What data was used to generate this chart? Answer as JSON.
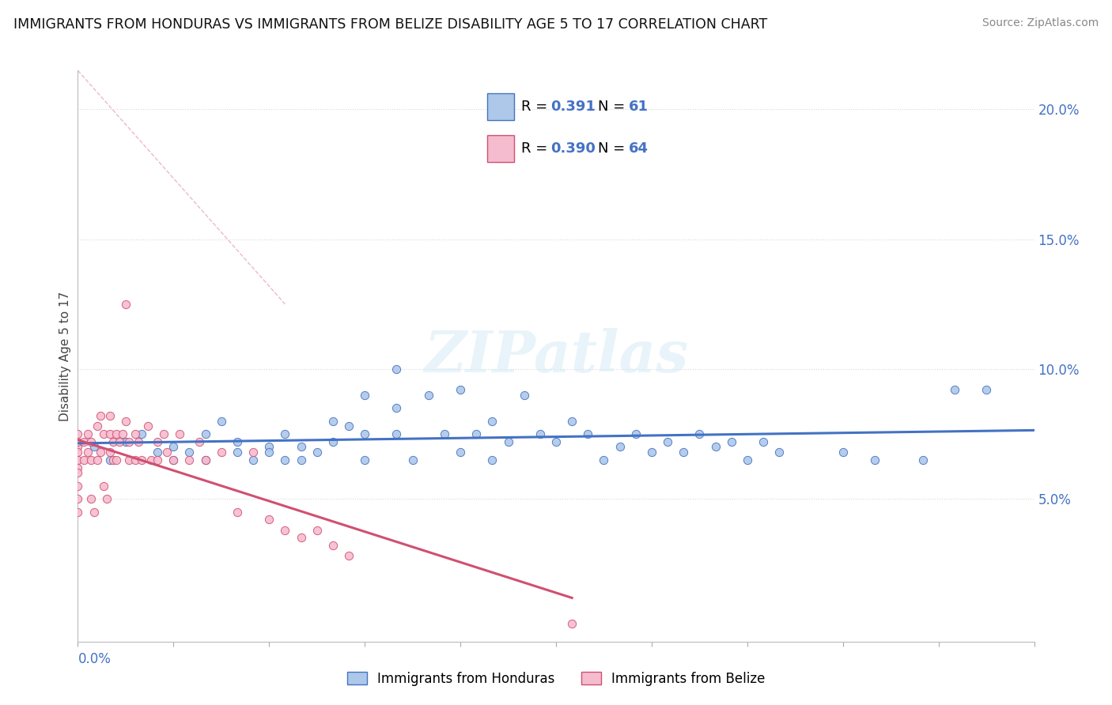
{
  "title": "IMMIGRANTS FROM HONDURAS VS IMMIGRANTS FROM BELIZE DISABILITY AGE 5 TO 17 CORRELATION CHART",
  "source": "Source: ZipAtlas.com",
  "ylabel": "Disability Age 5 to 17",
  "xlim": [
    0.0,
    0.3
  ],
  "ylim": [
    -0.005,
    0.215
  ],
  "color_honduras": "#adc8e8",
  "color_belize": "#f5bcd0",
  "color_trendline_honduras": "#4472c4",
  "color_trendline_belize": "#d05070",
  "color_axis_blue": "#4472c4",
  "color_r_value": "#4472c4",
  "color_n_value": "#4472c4",
  "honduras_x": [
    0.005,
    0.01,
    0.015,
    0.02,
    0.025,
    0.03,
    0.03,
    0.035,
    0.04,
    0.04,
    0.045,
    0.05,
    0.05,
    0.055,
    0.06,
    0.06,
    0.065,
    0.065,
    0.07,
    0.07,
    0.075,
    0.08,
    0.08,
    0.085,
    0.09,
    0.09,
    0.09,
    0.1,
    0.1,
    0.1,
    0.105,
    0.11,
    0.115,
    0.12,
    0.12,
    0.125,
    0.13,
    0.13,
    0.135,
    0.14,
    0.145,
    0.15,
    0.155,
    0.16,
    0.165,
    0.17,
    0.175,
    0.18,
    0.185,
    0.19,
    0.195,
    0.2,
    0.205,
    0.21,
    0.215,
    0.22,
    0.24,
    0.25,
    0.265,
    0.275,
    0.285
  ],
  "honduras_y": [
    0.07,
    0.065,
    0.072,
    0.075,
    0.068,
    0.07,
    0.065,
    0.068,
    0.075,
    0.065,
    0.08,
    0.072,
    0.068,
    0.065,
    0.07,
    0.068,
    0.075,
    0.065,
    0.07,
    0.065,
    0.068,
    0.08,
    0.072,
    0.078,
    0.075,
    0.065,
    0.09,
    0.085,
    0.1,
    0.075,
    0.065,
    0.09,
    0.075,
    0.092,
    0.068,
    0.075,
    0.08,
    0.065,
    0.072,
    0.09,
    0.075,
    0.072,
    0.08,
    0.075,
    0.065,
    0.07,
    0.075,
    0.068,
    0.072,
    0.068,
    0.075,
    0.07,
    0.072,
    0.065,
    0.072,
    0.068,
    0.068,
    0.065,
    0.065,
    0.092,
    0.092
  ],
  "belize_x": [
    0.0,
    0.0,
    0.0,
    0.0,
    0.0,
    0.0,
    0.0,
    0.0,
    0.0,
    0.0,
    0.002,
    0.002,
    0.003,
    0.003,
    0.004,
    0.004,
    0.004,
    0.005,
    0.006,
    0.006,
    0.007,
    0.007,
    0.008,
    0.008,
    0.009,
    0.01,
    0.01,
    0.01,
    0.011,
    0.011,
    0.012,
    0.012,
    0.013,
    0.014,
    0.015,
    0.015,
    0.016,
    0.016,
    0.018,
    0.018,
    0.019,
    0.02,
    0.022,
    0.023,
    0.025,
    0.025,
    0.027,
    0.028,
    0.03,
    0.032,
    0.035,
    0.038,
    0.04,
    0.045,
    0.05,
    0.055,
    0.06,
    0.065,
    0.07,
    0.075,
    0.08,
    0.085,
    0.155
  ],
  "belize_y": [
    0.07,
    0.072,
    0.068,
    0.075,
    0.065,
    0.062,
    0.06,
    0.055,
    0.05,
    0.045,
    0.072,
    0.065,
    0.075,
    0.068,
    0.065,
    0.072,
    0.05,
    0.045,
    0.078,
    0.065,
    0.082,
    0.068,
    0.075,
    0.055,
    0.05,
    0.075,
    0.068,
    0.082,
    0.065,
    0.072,
    0.075,
    0.065,
    0.072,
    0.075,
    0.08,
    0.125,
    0.065,
    0.072,
    0.065,
    0.075,
    0.072,
    0.065,
    0.078,
    0.065,
    0.072,
    0.065,
    0.075,
    0.068,
    0.065,
    0.075,
    0.065,
    0.072,
    0.065,
    0.068,
    0.045,
    0.068,
    0.042,
    0.038,
    0.035,
    0.038,
    0.032,
    0.028,
    0.002
  ],
  "watermark_text": "ZIPatlas",
  "dashed_line_x": [
    0.0,
    0.065
  ],
  "dashed_line_y": [
    0.215,
    0.125
  ]
}
